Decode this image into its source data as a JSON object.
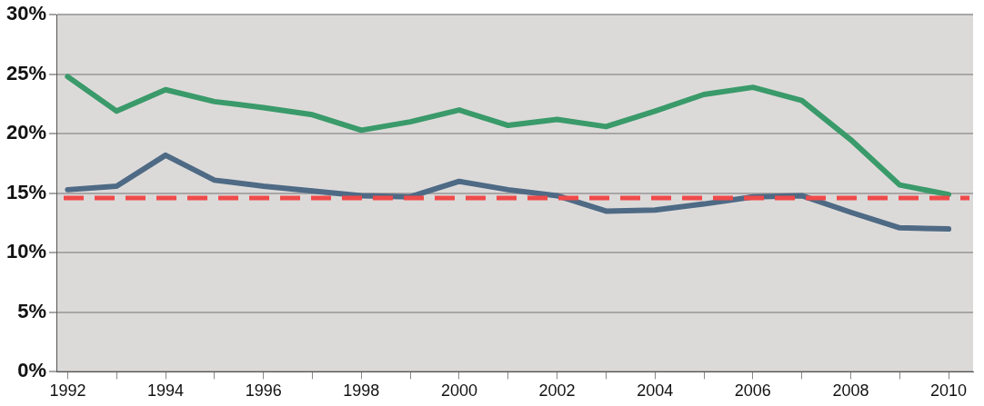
{
  "chart_data": {
    "type": "line",
    "x": [
      1992,
      1993,
      1994,
      1995,
      1996,
      1997,
      1998,
      1999,
      2000,
      2001,
      2002,
      2003,
      2004,
      2005,
      2006,
      2007,
      2008,
      2009,
      2010
    ],
    "series": [
      {
        "color": "#3a9a6a",
        "values": [
          24.8,
          21.9,
          23.7,
          22.7,
          22.2,
          21.6,
          20.3,
          21.0,
          22.0,
          20.7,
          21.2,
          20.6,
          21.9,
          23.3,
          23.9,
          22.8,
          19.5,
          15.7,
          14.9
        ]
      },
      {
        "color": "#4e6a85",
        "values": [
          15.3,
          15.6,
          18.2,
          16.1,
          15.6,
          15.2,
          14.8,
          14.7,
          16.0,
          15.3,
          14.8,
          13.5,
          13.6,
          14.1,
          14.7,
          14.8,
          13.4,
          12.1,
          12.0
        ]
      }
    ],
    "ref_lines": [
      {
        "axis": "y",
        "value": 14.6,
        "color": "#f04a4a",
        "line_style": "dashed"
      }
    ],
    "xlim": [
      1991.77,
      2010.5
    ],
    "xticks": [
      {
        "value": 1992,
        "label": "1992"
      },
      {
        "value": 1993,
        "label": null
      },
      {
        "value": 1994,
        "label": "1994"
      },
      {
        "value": 1995,
        "label": null
      },
      {
        "value": 1996,
        "label": "1996"
      },
      {
        "value": 1997,
        "label": null
      },
      {
        "value": 1998,
        "label": "1998"
      },
      {
        "value": 1999,
        "label": null
      },
      {
        "value": 2000,
        "label": "2000"
      },
      {
        "value": 2001,
        "label": null
      },
      {
        "value": 2002,
        "label": "2002"
      },
      {
        "value": 2003,
        "label": null
      },
      {
        "value": 2004,
        "label": "2004"
      },
      {
        "value": 2005,
        "label": null
      },
      {
        "value": 2006,
        "label": "2006"
      },
      {
        "value": 2007,
        "label": null
      },
      {
        "value": 2008,
        "label": "2008"
      },
      {
        "value": 2009,
        "label": null
      },
      {
        "value": 2010,
        "label": "2010"
      }
    ],
    "ylim": [
      0,
      30
    ],
    "yticks": [
      {
        "value": 0,
        "label": "0%"
      },
      {
        "value": 5,
        "label": "5%"
      },
      {
        "value": 10,
        "label": "10%"
      },
      {
        "value": 15,
        "label": "15%"
      },
      {
        "value": 20,
        "label": "20%"
      },
      {
        "value": 25,
        "label": "25%"
      },
      {
        "value": 30,
        "label": "30%"
      }
    ],
    "grid": "y",
    "legend": false,
    "marker": "none",
    "line_style": "solid"
  }
}
